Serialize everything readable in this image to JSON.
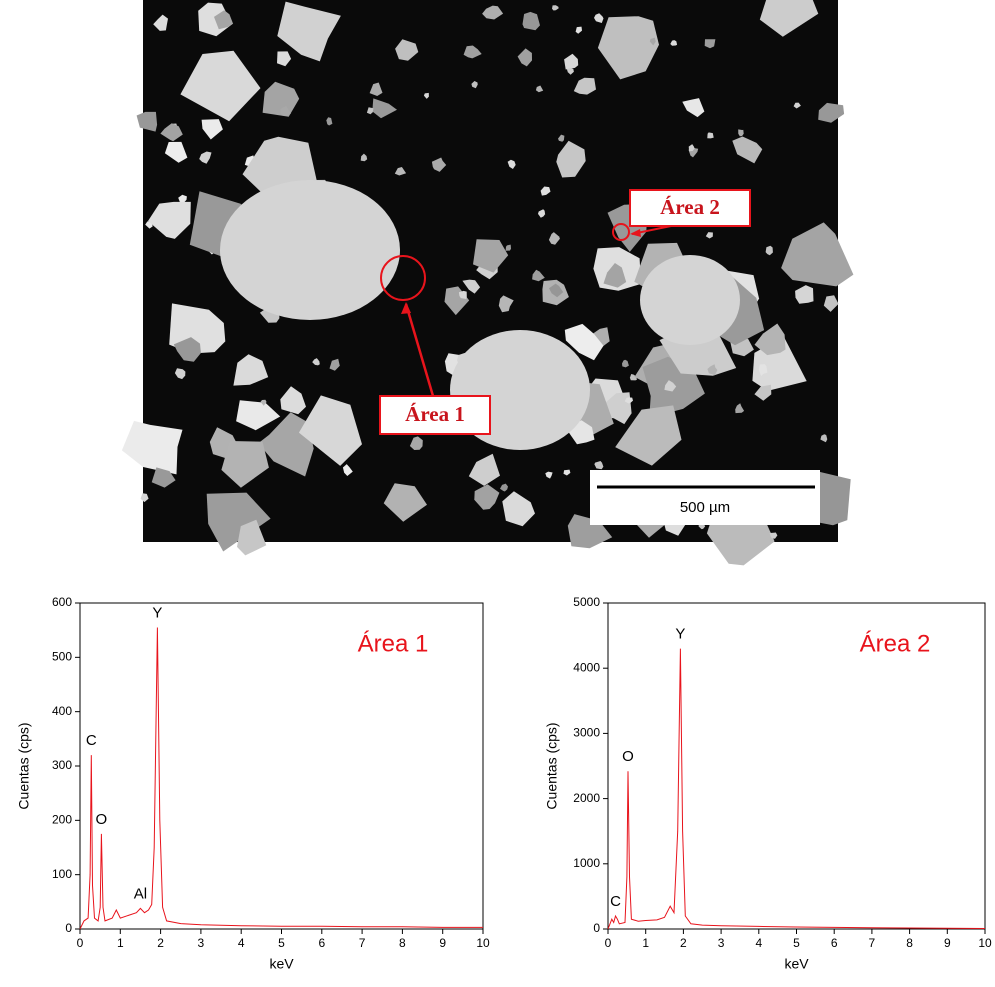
{
  "image": {
    "labels": [
      "Área 1",
      "Área 2"
    ],
    "scale_bar": "500 µm"
  },
  "chart_data": [
    {
      "type": "line",
      "title": "Área 1",
      "x_label": "keV",
      "y_label": "Cuentas (cps)",
      "color": "#e8141c",
      "xlim": [
        0,
        10
      ],
      "xticks": [
        0,
        1,
        2,
        3,
        4,
        5,
        6,
        7,
        8,
        9,
        10
      ],
      "ylim": [
        0,
        600
      ],
      "yticks": [
        0,
        100,
        200,
        300,
        400,
        500,
        600
      ],
      "x": [
        0,
        0.1,
        0.2,
        0.25,
        0.28,
        0.31,
        0.36,
        0.45,
        0.5,
        0.53,
        0.57,
        0.62,
        0.8,
        0.9,
        1.0,
        1.2,
        1.4,
        1.5,
        1.6,
        1.7,
        1.78,
        1.84,
        1.92,
        1.98,
        2.05,
        2.15,
        2.5,
        3,
        4,
        5,
        6,
        7,
        8,
        9,
        10
      ],
      "values": [
        0,
        15,
        20,
        100,
        320,
        80,
        20,
        15,
        40,
        175,
        40,
        15,
        20,
        35,
        20,
        25,
        30,
        38,
        30,
        35,
        45,
        150,
        555,
        200,
        40,
        15,
        10,
        8,
        6,
        5,
        5,
        4,
        4,
        3,
        3
      ],
      "annotations": [
        {
          "text": "C",
          "x": 0.28,
          "y": 320
        },
        {
          "text": "O",
          "x": 0.53,
          "y": 175
        },
        {
          "text": "Al",
          "x": 1.5,
          "y": 38
        },
        {
          "text": "Y",
          "x": 1.92,
          "y": 555
        }
      ]
    },
    {
      "type": "line",
      "title": "Área 2",
      "x_label": "keV",
      "y_label": "Cuentas (cps)",
      "color": "#e8141c",
      "xlim": [
        0,
        10
      ],
      "xticks": [
        0,
        1,
        2,
        3,
        4,
        5,
        6,
        7,
        8,
        9,
        10
      ],
      "ylim": [
        0,
        5000
      ],
      "yticks": [
        0,
        1000,
        2000,
        3000,
        4000,
        5000
      ],
      "x": [
        0,
        0.1,
        0.15,
        0.2,
        0.25,
        0.3,
        0.45,
        0.5,
        0.53,
        0.57,
        0.62,
        0.8,
        1.0,
        1.3,
        1.5,
        1.65,
        1.75,
        1.85,
        1.92,
        1.98,
        2.05,
        2.2,
        2.5,
        3,
        4,
        5,
        6,
        7,
        8,
        9,
        10
      ],
      "values": [
        0,
        150,
        100,
        200,
        150,
        80,
        100,
        800,
        2420,
        800,
        150,
        120,
        130,
        140,
        180,
        350,
        250,
        1500,
        4300,
        1500,
        200,
        80,
        60,
        50,
        40,
        30,
        25,
        20,
        15,
        10,
        8
      ],
      "annotations": [
        {
          "text": "C",
          "x": 0.2,
          "y": 200
        },
        {
          "text": "O",
          "x": 0.53,
          "y": 2420
        },
        {
          "text": "Y",
          "x": 1.92,
          "y": 4300
        }
      ]
    }
  ]
}
